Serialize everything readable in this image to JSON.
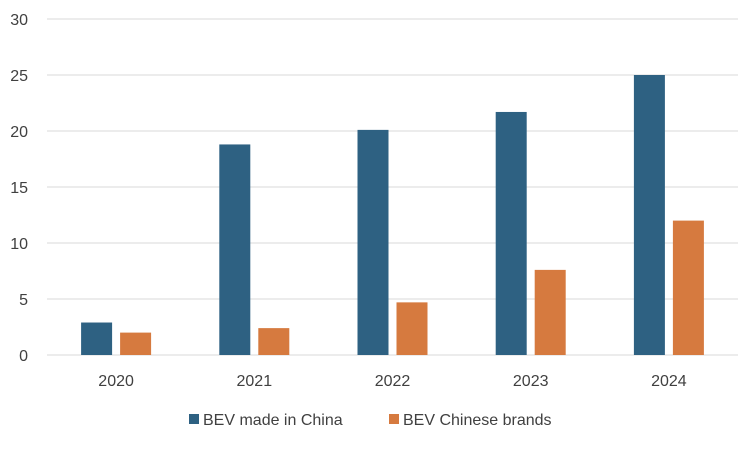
{
  "chart_data": {
    "type": "bar",
    "title": "",
    "xlabel": "",
    "ylabel": "",
    "categories": [
      "2020",
      "2021",
      "2022",
      "2023",
      "2024"
    ],
    "series": [
      {
        "name": "BEV made in China",
        "color": "#2e6182",
        "values": [
          2.9,
          18.8,
          20.1,
          21.7,
          25.0
        ]
      },
      {
        "name": "BEV Chinese brands",
        "color": "#d67a3f",
        "values": [
          2.0,
          2.4,
          4.7,
          7.6,
          12.0
        ]
      }
    ],
    "ylim": [
      0,
      30
    ],
    "yticks": [
      0,
      5,
      10,
      15,
      20,
      25,
      30
    ],
    "grid": true,
    "legend": "bottom-center",
    "gridline_color": "#d9d9d9"
  }
}
